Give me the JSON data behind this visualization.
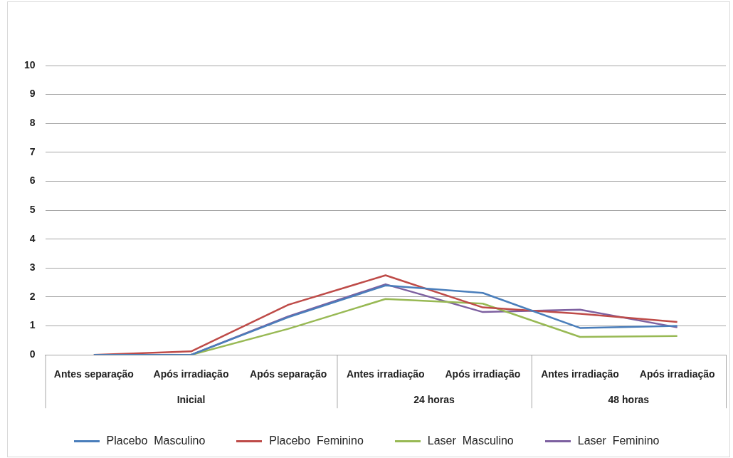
{
  "chart_data": {
    "type": "line",
    "categories": [
      "Antes separação",
      "Após irradiação",
      "Após separação",
      "Antes irradiação",
      "Após irradiação",
      "Antes irradiação",
      "Após irradiação"
    ],
    "series": [
      {
        "name": "Placebo  Masculino",
        "color": "#4a7ebb",
        "values": [
          0,
          0,
          1.3,
          2.4,
          2.14,
          0.93,
          1.0
        ]
      },
      {
        "name": "Placebo  Feminino",
        "color": "#be4b48",
        "values": [
          0,
          0.12,
          1.73,
          2.75,
          1.64,
          1.42,
          1.14
        ]
      },
      {
        "name": "Laser  Masculino",
        "color": "#98b954",
        "values": [
          0,
          0,
          0.9,
          1.93,
          1.77,
          0.62,
          0.65
        ]
      },
      {
        "name": "Laser  Feminino",
        "color": "#7d60a0",
        "values": [
          0,
          0,
          1.33,
          2.44,
          1.48,
          1.56,
          0.95
        ]
      }
    ],
    "annotations": [
      "Inicial",
      "24 horas",
      "48 horas"
    ],
    "ylim": [
      0,
      10
    ],
    "yticks": [
      0,
      1,
      2,
      3,
      4,
      5,
      6,
      7,
      8,
      9,
      10
    ],
    "grid": "y",
    "legend": "bottom",
    "marker": "none",
    "line_style": "solid"
  }
}
